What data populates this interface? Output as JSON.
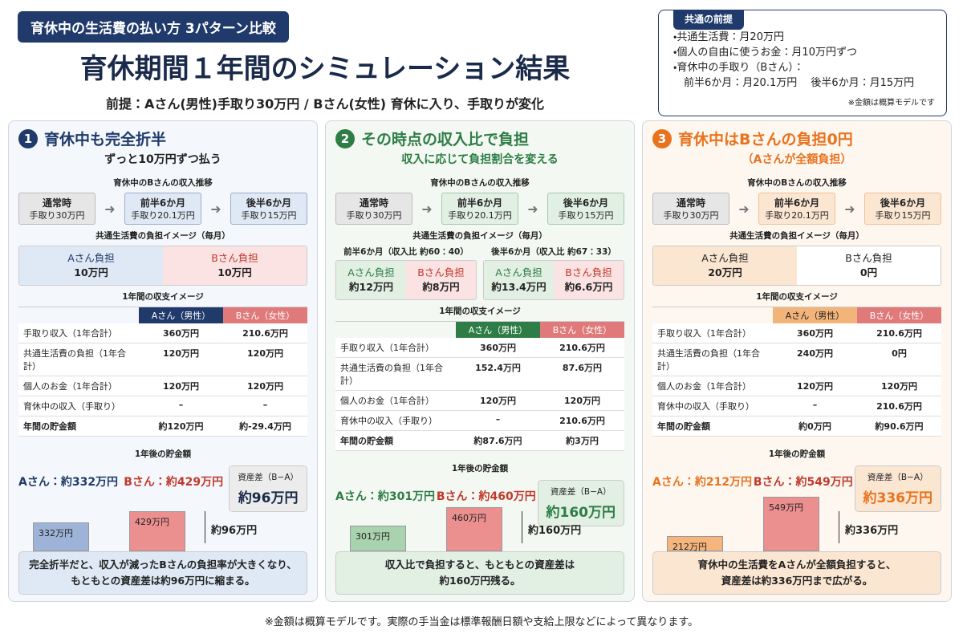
{
  "header": {
    "tag": "育休中の生活費の払い方 3パターン比較",
    "title": "育休期間１年間のシミュレーション結果",
    "premise": "前提：Aさん(男性)手取り30万円 / Bさん(女性) 育休に入り、手取りが変化"
  },
  "common": {
    "title": "共通の前提",
    "items": [
      "・共通生活費：月20万円",
      "・個人の自由に使うお金：月10万円ずつ",
      "・育休中の手取り（Bさん）：",
      "　前半6か月：月20.1万円　 後半6か月：月15万円"
    ],
    "note": "※金額は概算モデルです"
  },
  "panels": [
    {
      "number": "1",
      "color": "#1f3a6b",
      "light": "#dfe8f5",
      "bg": "#f4f7fb",
      "title": "育休中も完全折半",
      "subtitle": "ずっと10万円ずつ払う",
      "flow_title": "育休中のBさんの収入推移",
      "flow": [
        {
          "label": "通常時",
          "value": "手取り30万円"
        },
        {
          "label": "前半6か月",
          "value": "手取り20.1万円"
        },
        {
          "label": "後半6か月",
          "value": "手取り15万円"
        }
      ],
      "burden_title": "共通生活費の負担イメージ（毎月）",
      "burden": [
        {
          "period": null,
          "cells": [
            {
              "label": "Aさん負担",
              "value": "10万円"
            },
            {
              "label": "Bさん負担",
              "value": "10万円"
            }
          ]
        }
      ],
      "table_title": "1年間の収支イメージ",
      "table": {
        "header": [
          "Aさん（男性）",
          "Bさん（女性）"
        ],
        "rows": [
          [
            "手取り収入（1年合計）",
            "360万円",
            "210.6万円"
          ],
          [
            "共通生活費の負担（1年合計）",
            "120万円",
            "120万円"
          ],
          [
            "個人のお金（1年合計）",
            "120万円",
            "120万円"
          ],
          [
            "育休中の収入（手取り）",
            "–",
            "–"
          ],
          [
            "年間の貯金額",
            "約120万円",
            "約-29.4万円"
          ]
        ]
      },
      "savings_title": "1年後の貯金額",
      "a_saving": "Aさん：約332万円",
      "b_saving": "Bさん：約429万円",
      "diff_label": "資産差（B−A）",
      "diff_value": "約96万円",
      "bars": [
        {
          "value": 332,
          "label": "332万円"
        },
        {
          "value": 429,
          "label": "429万円"
        }
      ],
      "gap": "約96万円",
      "conclusion": [
        "完全折半だと、収入が減ったBさんの負担率が大きくなり、",
        "もともとの資産差は約96万円に縮まる。"
      ]
    },
    {
      "number": "2",
      "color": "#2e7d46",
      "light": "#e2efe3",
      "bg": "#f4f8f3",
      "title": "その時点の収入比で負担",
      "subtitle": "収入に応じて負担割合を変える",
      "flow_title": "育休中のBさんの収入推移",
      "flow": [
        {
          "label": "通常時",
          "value": "手取り30万円"
        },
        {
          "label": "前半6か月",
          "value": "手取り20.1万円"
        },
        {
          "label": "後半6か月",
          "value": "手取り15万円"
        }
      ],
      "burden_title": "共通生活費の負担イメージ（毎月）",
      "burden": [
        {
          "period": "前半6か月（収入比 約60：40）",
          "cells": [
            {
              "label": "Aさん負担",
              "value": "約12万円"
            },
            {
              "label": "Bさん負担",
              "value": "約8万円"
            }
          ]
        },
        {
          "period": "後半6か月（収入比 約67：33）",
          "cells": [
            {
              "label": "Aさん負担",
              "value": "約13.4万円"
            },
            {
              "label": "Bさん負担",
              "value": "約6.6万円"
            }
          ]
        }
      ],
      "table_title": "1年間の収支イメージ",
      "table": {
        "header": [
          "Aさん（男性）",
          "Bさん（女性）"
        ],
        "rows": [
          [
            "手取り収入（1年合計）",
            "360万円",
            "210.6万円"
          ],
          [
            "共通生活費の負担（1年合計）",
            "152.4万円",
            "87.6万円"
          ],
          [
            "個人のお金（1年合計）",
            "120万円",
            "120万円"
          ],
          [
            "育休中の収入（手取り）",
            "–",
            "210.6万円"
          ],
          [
            "年間の貯金額",
            "約87.6万円",
            "約3万円"
          ]
        ]
      },
      "savings_title": "1年後の貯金額",
      "a_saving": "Aさん：約301万円",
      "b_saving": "Bさん：約460万円",
      "diff_label": "資産差（B−A）",
      "diff_value": "約160万円",
      "bars": [
        {
          "value": 301,
          "label": "301万円"
        },
        {
          "value": 460,
          "label": "460万円"
        }
      ],
      "gap": "約160万円",
      "conclusion": [
        "収入比で負担すると、もともとの資産差は",
        "約160万円残る。"
      ]
    },
    {
      "number": "3",
      "color": "#e8731f",
      "light": "#fbe6d2",
      "bg": "#fdf7f0",
      "title": "育休中はBさんの負担0円",
      "subtitle": "（Aさんが全額負担）",
      "flow_title": "育休中のBさんの収入推移",
      "flow": [
        {
          "label": "通常時",
          "value": "手取り30万円"
        },
        {
          "label": "前半6か月",
          "value": "手取り20.1万円"
        },
        {
          "label": "後半6か月",
          "value": "手取り15万円"
        }
      ],
      "burden_title": "共通生活費の負担イメージ（毎月）",
      "burden": [
        {
          "period": null,
          "cells": [
            {
              "label": "Aさん負担",
              "value": "20万円"
            },
            {
              "label": "Bさん負担",
              "value": "0円"
            }
          ]
        }
      ],
      "table_title": "1年間の収支イメージ",
      "table": {
        "header": [
          "Aさん（男性）",
          "Bさん（女性）"
        ],
        "rows": [
          [
            "手取り収入（1年合計）",
            "360万円",
            "210.6万円"
          ],
          [
            "共通生活費の負担（1年合計）",
            "240万円",
            "0円"
          ],
          [
            "個人のお金（1年合計）",
            "120万円",
            "120万円"
          ],
          [
            "育休中の収入（手取り）",
            "–",
            "210.6万円"
          ],
          [
            "年間の貯金額",
            "約0万円",
            "約90.6万円"
          ]
        ]
      },
      "savings_title": "1年後の貯金額",
      "a_saving": "Aさん：約212万円",
      "b_saving": "Bさん：約549万円",
      "diff_label": "資産差（B−A）",
      "diff_value": "約336万円",
      "bars": [
        {
          "value": 212,
          "label": "212万円"
        },
        {
          "value": 549,
          "label": "549万円"
        }
      ],
      "gap": "約336万円",
      "conclusion": [
        "育休中の生活費をAさんが全額負担すると、",
        "資産差は約336万円まで広がる。"
      ]
    }
  ],
  "footer": "※金額は概算モデルです。実際の手当金は標準報酬日額や支給上限などによって異なります。"
}
